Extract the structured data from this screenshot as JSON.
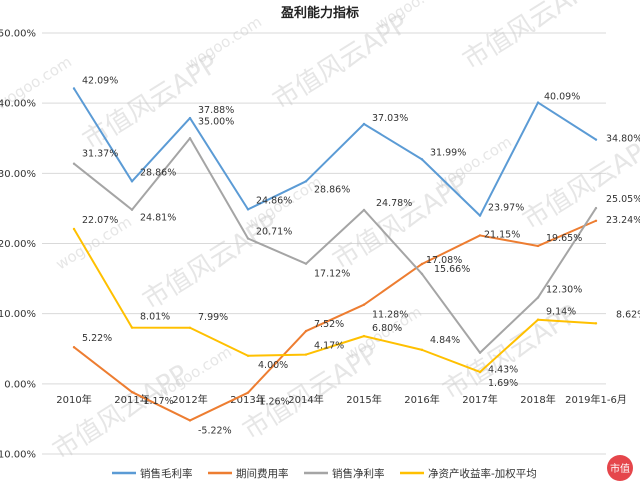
{
  "chart_data": {
    "type": "line",
    "title": "盈利能力指标",
    "categories": [
      "2010年",
      "2011年",
      "2012年",
      "2013年",
      "2014年",
      "2015年",
      "2016年",
      "2017年",
      "2018年",
      "2019年1-6月"
    ],
    "ylim": [
      -10,
      50
    ],
    "yticks": [
      -10,
      0,
      10,
      20,
      30,
      40,
      50
    ],
    "ytick_labels": [
      "-10.00%",
      "0.00%",
      "10.00%",
      "20.00%",
      "30.00%",
      "40.00%",
      "50.00%"
    ],
    "grid": "horizontal",
    "legend_position": "bottom",
    "series": [
      {
        "name": "销售毛利率",
        "color": "#5b9bd5",
        "values": [
          42.09,
          28.86,
          37.88,
          24.86,
          28.86,
          37.03,
          31.99,
          23.97,
          40.09,
          34.8
        ],
        "labels": [
          "42.09%",
          "28.86%",
          "37.88%",
          "24.86%",
          "28.86%",
          "37.03%",
          "31.99%",
          "23.97%",
          "40.09%",
          "34.80%"
        ]
      },
      {
        "name": "期间费用率",
        "color": "#ed7d31",
        "values": [
          5.22,
          -1.17,
          -5.22,
          -1.26,
          7.52,
          11.28,
          17.08,
          21.15,
          19.65,
          23.24
        ],
        "labels": [
          "5.22%",
          "-1.17%",
          "-5.22%",
          "-1.26%",
          "7.52%",
          "11.28%",
          "17.08%",
          "21.15%",
          "19.65%",
          "23.24%"
        ]
      },
      {
        "name": "销售净利率",
        "color": "#a5a5a5",
        "values": [
          31.37,
          24.81,
          35.0,
          20.71,
          17.12,
          24.78,
          15.66,
          4.43,
          12.3,
          25.05
        ],
        "labels": [
          "31.37%",
          "24.81%",
          "35.00%",
          "20.71%",
          "17.12%",
          "24.78%",
          "15.66%",
          "4.43%",
          "12.30%",
          "25.05%"
        ]
      },
      {
        "name": "净资产收益率-加权平均",
        "color": "#ffc000",
        "values": [
          22.07,
          8.01,
          7.99,
          4.0,
          4.17,
          6.8,
          4.84,
          1.69,
          9.14,
          8.62
        ],
        "labels": [
          "22.07%",
          "8.01%",
          "7.99%",
          "4.00%",
          "4.17%",
          "6.80%",
          "4.84%",
          "1.69%",
          "9.14%",
          "8.62%"
        ]
      }
    ]
  },
  "watermark": {
    "text": "市值风云APP",
    "url_text": "wogoo.com",
    "stamp_text": "市值"
  }
}
